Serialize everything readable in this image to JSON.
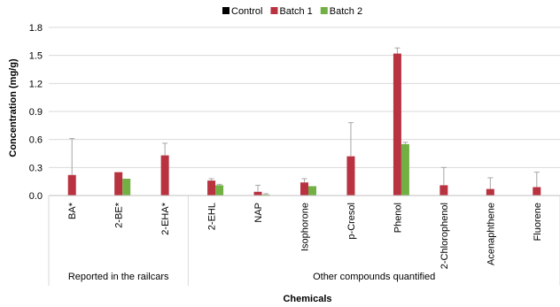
{
  "chart_data": {
    "type": "bar",
    "categories": [
      "BA*",
      "2-BE*",
      "2-EHA*",
      "2-EHL",
      "NAP",
      "Isophorone",
      "p-Cresol",
      "Phenol",
      "2-Chlorophenol",
      "Acenaphthene",
      "Fluorene"
    ],
    "groups": [
      {
        "label": "Reported in the railcars",
        "categories": [
          "BA*",
          "2-BE*",
          "2-EHA*"
        ]
      },
      {
        "label": "Other compounds quantified",
        "categories": [
          "2-EHL",
          "NAP",
          "Isophorone",
          "p-Cresol",
          "Phenol",
          "2-Chlorophenol",
          "Acenaphthene",
          "Fluorene"
        ]
      }
    ],
    "series": [
      {
        "name": "Control",
        "color": "#000000",
        "values": [
          0,
          0,
          0,
          0,
          0,
          0,
          0,
          0,
          0,
          0,
          0
        ],
        "errors": [
          0,
          0,
          0,
          0,
          0,
          0,
          0,
          0,
          0,
          0,
          0
        ]
      },
      {
        "name": "Batch 1",
        "color": "#b83240",
        "values": [
          0.22,
          0.25,
          0.43,
          0.16,
          0.04,
          0.14,
          0.42,
          1.52,
          0.11,
          0.07,
          0.09
        ],
        "errors": [
          0.39,
          0.0,
          0.13,
          0.02,
          0.07,
          0.04,
          0.36,
          0.06,
          0.19,
          0.12,
          0.16
        ]
      },
      {
        "name": "Batch 2",
        "color": "#72b043",
        "values": [
          null,
          0.18,
          null,
          0.11,
          0.01,
          0.1,
          null,
          0.55,
          null,
          null,
          null
        ],
        "errors": [
          null,
          0.0,
          null,
          0.01,
          0.01,
          0.0,
          null,
          0.02,
          null,
          null,
          null
        ]
      }
    ],
    "ylabel": "Concentration (mg/g)",
    "xlabel": "Chemicals",
    "ylim": [
      0,
      1.8
    ],
    "yticks": [
      0.0,
      0.3,
      0.6,
      0.9,
      1.2,
      1.5,
      1.8
    ],
    "ytick_labels": [
      "0.0",
      "0.3",
      "0.6",
      "0.9",
      "1.2",
      "1.5",
      "1.8"
    ],
    "grid": true,
    "legend_position": "top-center"
  }
}
